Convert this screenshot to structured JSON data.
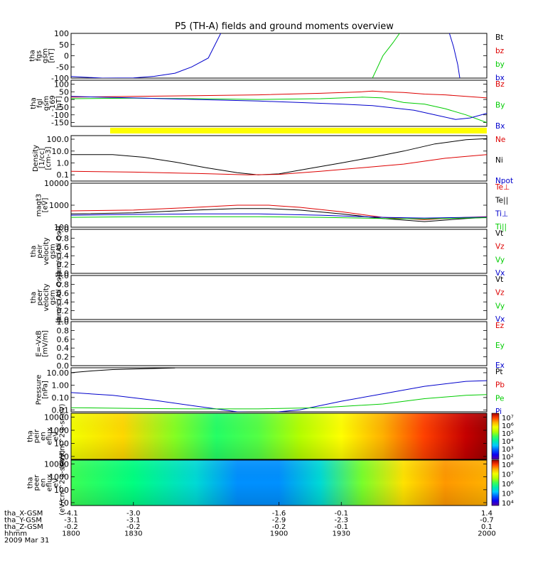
{
  "title": "P5 (TH-A) fields and ground moments overview",
  "colors": {
    "black": "#000000",
    "red": "#dd0000",
    "green": "#00cc00",
    "blue": "#0000cc",
    "yellow": "#ffff00"
  },
  "chart_data": [
    {
      "id": "fgs",
      "type": "line",
      "ylabel": [
        "tha",
        "fgs",
        "gsm",
        "[nT]"
      ],
      "ylim": [
        -100,
        100
      ],
      "yticks": [
        "100",
        "50",
        "0",
        "-50",
        "-100"
      ],
      "ytick_values": [
        100,
        50,
        0,
        -50,
        -100
      ],
      "legend": [
        {
          "name": "Bt",
          "color": "#000000"
        },
        {
          "name": "bz",
          "color": "#dd0000"
        },
        {
          "name": "by",
          "color": "#00cc00"
        },
        {
          "name": "bx",
          "color": "#0000cc"
        }
      ],
      "series": [
        {
          "name": "bx",
          "color": "#0000cc",
          "x": [
            1800,
            1815,
            1830,
            1840,
            1850,
            1858,
            1866,
            1872
          ],
          "y": [
            -93,
            -100,
            -99,
            -92,
            -78,
            -50,
            -10,
            100
          ]
        },
        {
          "name": "by",
          "color": "#00cc00",
          "x": [
            1945,
            1947,
            1950,
            1955,
            1958
          ],
          "y": [
            -100,
            -60,
            0,
            60,
            100
          ]
        },
        {
          "name": "bx-late",
          "color": "#0000cc",
          "x": [
            1982,
            1984,
            1986,
            1987
          ],
          "y": [
            100,
            40,
            -40,
            -100
          ]
        }
      ]
    },
    {
      "id": "fgl",
      "type": "line",
      "ylabel": [
        "tha",
        "fgl",
        "gsm",
        "-169",
        "[nT]"
      ],
      "ylim": [
        -175,
        125
      ],
      "yticks": [
        "100",
        "50",
        "0",
        "-50",
        "-100",
        "-150"
      ],
      "ytick_values": [
        100,
        50,
        0,
        -50,
        -100,
        -150
      ],
      "legend": [
        {
          "name": "Bz",
          "color": "#dd0000"
        },
        {
          "name": "By",
          "color": "#00cc00"
        },
        {
          "name": "Bx",
          "color": "#0000cc"
        }
      ],
      "series": [
        {
          "name": "Bz",
          "color": "#dd0000",
          "x": [
            1800,
            1830,
            1860,
            1890,
            1920,
            1940,
            1945,
            1950,
            1960,
            1970,
            1980,
            1990,
            2000
          ],
          "y": [
            15,
            20,
            25,
            30,
            40,
            50,
            55,
            50,
            45,
            35,
            30,
            20,
            10
          ]
        },
        {
          "name": "By",
          "color": "#00cc00",
          "x": [
            1800,
            1830,
            1860,
            1890,
            1920,
            1940,
            1950,
            1960,
            1970,
            1980,
            1990,
            2000
          ],
          "y": [
            5,
            8,
            5,
            0,
            5,
            15,
            10,
            -20,
            -30,
            -60,
            -100,
            -150
          ]
        },
        {
          "name": "Bx",
          "color": "#0000cc",
          "x": [
            1800,
            1830,
            1860,
            1890,
            1910,
            1930,
            1945,
            1955,
            1965,
            1975,
            1985,
            1992,
            2000
          ],
          "y": [
            20,
            10,
            0,
            -10,
            -20,
            -30,
            -40,
            -55,
            -70,
            -100,
            -130,
            -120,
            -90
          ]
        }
      ]
    },
    {
      "id": "density",
      "type": "line",
      "log": true,
      "ylabel": [
        "Density",
        "[1/cc]",
        "[cm-3]"
      ],
      "ylim": [
        0.03,
        200
      ],
      "yticks": [
        "100.0",
        "10.0",
        "1.0",
        "0.1"
      ],
      "ytick_values": [
        100,
        10,
        1,
        0.1
      ],
      "legend": [
        {
          "name": "Ne",
          "color": "#dd0000"
        },
        {
          "name": "Ni",
          "color": "#000000"
        },
        {
          "name": "Npot",
          "color": "#0000cc"
        }
      ],
      "series": [
        {
          "name": "Ni",
          "color": "#000000",
          "x": [
            1800,
            1820,
            1835,
            1850,
            1865,
            1880,
            1890,
            1900,
            1915,
            1930,
            1945,
            1960,
            1975,
            1990,
            2000
          ],
          "y": [
            5,
            5,
            3,
            1.2,
            0.4,
            0.15,
            0.1,
            0.12,
            0.35,
            1,
            3,
            10,
            40,
            90,
            110
          ]
        },
        {
          "name": "Ne",
          "color": "#dd0000",
          "x": [
            1800,
            1830,
            1860,
            1885,
            1900,
            1920,
            1940,
            1960,
            1980,
            2000
          ],
          "y": [
            0.2,
            0.17,
            0.13,
            0.1,
            0.11,
            0.2,
            0.4,
            0.8,
            2.5,
            5
          ]
        }
      ]
    },
    {
      "id": "magt3",
      "type": "line",
      "log": true,
      "ylabel": [
        "magt3",
        "[eV]"
      ],
      "ylim": [
        100,
        10000
      ],
      "yticks": [
        "10000",
        "1000",
        "100"
      ],
      "ytick_values": [
        10000,
        1000,
        100
      ],
      "legend": [
        {
          "name": "Te⊥",
          "color": "#dd0000"
        },
        {
          "name": "Te||",
          "color": "#000000"
        },
        {
          "name": "Ti⊥",
          "color": "#0000cc"
        },
        {
          "name": "Ti||",
          "color": "#00cc00"
        }
      ],
      "series": [
        {
          "name": "Te⊥",
          "color": "#dd0000",
          "x": [
            1800,
            1830,
            1860,
            1880,
            1895,
            1910,
            1930,
            1950,
            1970,
            1990,
            2000
          ],
          "y": [
            550,
            600,
            800,
            1000,
            1000,
            800,
            500,
            280,
            220,
            280,
            300
          ]
        },
        {
          "name": "Te||",
          "color": "#000000",
          "x": [
            1800,
            1830,
            1860,
            1880,
            1895,
            1910,
            1930,
            1950,
            1970,
            1990,
            2000
          ],
          "y": [
            400,
            450,
            600,
            700,
            700,
            600,
            400,
            250,
            180,
            250,
            280
          ]
        },
        {
          "name": "Ti⊥",
          "color": "#0000cc",
          "x": [
            1800,
            1830,
            1860,
            1890,
            1920,
            1950,
            1970,
            2000
          ],
          "y": [
            350,
            380,
            400,
            400,
            350,
            280,
            260,
            290
          ]
        },
        {
          "name": "Ti||",
          "color": "#00cc00",
          "x": [
            1800,
            1830,
            1860,
            1890,
            1920,
            1950,
            1970,
            2000
          ],
          "y": [
            280,
            300,
            300,
            300,
            280,
            250,
            240,
            270
          ]
        }
      ]
    },
    {
      "id": "peir",
      "type": "line",
      "ylabel": [
        "tha",
        "peir",
        "velocity",
        "gsm",
        "[km/s (All Qs)]"
      ],
      "ylim": [
        0,
        1
      ],
      "yticks": [
        "1.0",
        "0.8",
        "0.6",
        "0.4",
        "0.2",
        "0.0"
      ],
      "ytick_values": [
        1,
        0.8,
        0.6,
        0.4,
        0.2,
        0
      ],
      "legend": [
        {
          "name": "Vt",
          "color": "#000000"
        },
        {
          "name": "Vz",
          "color": "#dd0000"
        },
        {
          "name": "Vy",
          "color": "#00cc00"
        },
        {
          "name": "Vx",
          "color": "#0000cc"
        }
      ],
      "series": []
    },
    {
      "id": "peer",
      "type": "line",
      "ylabel": [
        "tha",
        "peer",
        "velocity",
        "gsm",
        "[km/s (All Qs)]"
      ],
      "ylim": [
        0,
        1
      ],
      "yticks": [
        "1.0",
        "0.8",
        "0.6",
        "0.4",
        "0.2",
        "0.0"
      ],
      "ytick_values": [
        1,
        0.8,
        0.6,
        0.4,
        0.2,
        0
      ],
      "legend": [
        {
          "name": "Vt",
          "color": "#000000"
        },
        {
          "name": "Vz",
          "color": "#dd0000"
        },
        {
          "name": "Vy",
          "color": "#00cc00"
        },
        {
          "name": "Vx",
          "color": "#0000cc"
        }
      ],
      "series": []
    },
    {
      "id": "efield",
      "type": "line",
      "ylabel": [
        "E=-VxB",
        "[mV/m]"
      ],
      "ylim": [
        0,
        1
      ],
      "yticks": [
        "1.0",
        "0.8",
        "0.6",
        "0.4",
        "0.2",
        "0.0"
      ],
      "ytick_values": [
        1,
        0.8,
        0.6,
        0.4,
        0.2,
        0
      ],
      "legend": [
        {
          "name": "Ez",
          "color": "#dd0000"
        },
        {
          "name": "Ey",
          "color": "#00cc00"
        },
        {
          "name": "Ex",
          "color": "#0000cc"
        }
      ],
      "series": []
    },
    {
      "id": "pressure",
      "type": "line",
      "log": true,
      "ylabel": [
        "Pressure",
        "[nPa]"
      ],
      "ylim": [
        0.007,
        25
      ],
      "yticks": [
        "10.00",
        "1.00",
        "0.10",
        "0.01"
      ],
      "ytick_values": [
        10,
        1,
        0.1,
        0.01
      ],
      "legend": [
        {
          "name": "Pt",
          "color": "#000000"
        },
        {
          "name": "Pb",
          "color": "#dd0000"
        },
        {
          "name": "Pe",
          "color": "#00cc00"
        },
        {
          "name": "Pi",
          "color": "#0000cc"
        }
      ],
      "series": [
        {
          "name": "Pt",
          "color": "#000000",
          "x": [
            1800,
            1810,
            1820,
            1830,
            1840,
            1850
          ],
          "y": [
            10,
            14,
            18,
            20,
            22,
            24
          ]
        },
        {
          "name": "Pi",
          "color": "#0000cc",
          "x": [
            1800,
            1820,
            1840,
            1860,
            1880,
            1895,
            1910,
            1930,
            1950,
            1970,
            1990,
            2000
          ],
          "y": [
            0.25,
            0.15,
            0.06,
            0.02,
            0.007,
            0.006,
            0.01,
            0.05,
            0.2,
            0.8,
            2,
            2.3
          ]
        },
        {
          "name": "Pe",
          "color": "#00cc00",
          "x": [
            1800,
            1830,
            1860,
            1890,
            1920,
            1950,
            1970,
            1990,
            2000
          ],
          "y": [
            0.015,
            0.013,
            0.012,
            0.012,
            0.015,
            0.03,
            0.08,
            0.15,
            0.17
          ]
        }
      ]
    },
    {
      "id": "peir_en",
      "type": "heatmap",
      "log": true,
      "ylabel": [
        "tha",
        "peir",
        "en",
        "eflux",
        "eV",
        "(eV/cm^2-s-sr-eV)"
      ],
      "ylim": [
        6,
        20000
      ],
      "yticks": [
        "10000",
        "1000",
        "100",
        "10"
      ],
      "ytick_values": [
        10000,
        1000,
        100,
        10
      ],
      "colorbar": {
        "labels": [
          "10⁷",
          "10⁶",
          "10⁵",
          "10⁴",
          "10³",
          "10²"
        ],
        "log_min": 2,
        "log_max": 7
      },
      "time_profile": {
        "x": [
          1800,
          1825,
          1850,
          1870,
          1890,
          1910,
          1930,
          1950,
          1970,
          1990,
          2000
        ],
        "log_flux": [
          5.5,
          5.8,
          4.8,
          4.4,
          4.6,
          5.0,
          5.6,
          6.0,
          6.5,
          6.9,
          7.0
        ]
      }
    },
    {
      "id": "peer_en",
      "type": "heatmap",
      "log": true,
      "ylabel": [
        "tha",
        "peer",
        "en",
        "eflux",
        "eV",
        "(eV/cm^2-s-sr-eV)"
      ],
      "ylim": [
        6,
        20000
      ],
      "yticks": [
        "10000",
        "1000",
        "100",
        "10"
      ],
      "ytick_values": [
        10000,
        1000,
        100,
        10
      ],
      "colorbar": {
        "labels": [
          "10⁸",
          "10⁷",
          "10⁶",
          "10⁵",
          "10⁴"
        ],
        "log_min": 4,
        "log_max": 8
      },
      "time_profile": {
        "x": [
          1800,
          1830,
          1860,
          1880,
          1900,
          1920,
          1940,
          1960,
          1980,
          2000
        ],
        "log_flux": [
          6.0,
          5.8,
          5.4,
          5.0,
          5.0,
          5.4,
          6.2,
          7.0,
          7.3,
          7.2
        ]
      }
    }
  ],
  "xaxis": {
    "range": [
      1800,
      2000
    ],
    "rows": [
      {
        "label": "tha_X-GSM",
        "values": [
          "-4.1",
          "-3.0",
          "-1.6",
          "-0.1",
          "1.4"
        ]
      },
      {
        "label": "tha_Y-GSM",
        "values": [
          "-3.1",
          "-3.1",
          "-2.9",
          "-2.3",
          "-0.7"
        ]
      },
      {
        "label": "tha_Z-GSM",
        "values": [
          "-0.2",
          "-0.2",
          "-0.2",
          "-0.1",
          "0.1"
        ]
      },
      {
        "label": "hhmm",
        "values": [
          "1800",
          "1830",
          "1900",
          "1930",
          "2000"
        ]
      }
    ],
    "tick_values": [
      1800,
      1830,
      1900,
      1930,
      2000
    ],
    "date": "2009 Mar 31"
  }
}
